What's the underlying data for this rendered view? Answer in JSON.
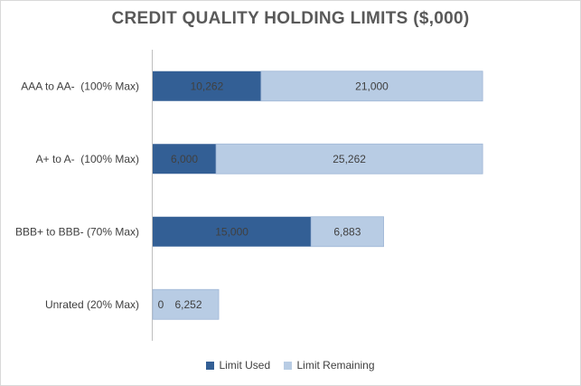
{
  "chart_data": {
    "type": "bar",
    "orientation": "horizontal",
    "stacked": true,
    "title": "CREDIT QUALITY HOLDING LIMITS ($,000)",
    "categories": [
      "AAA to AA-  (100% Max)",
      "A+ to A-  (100% Max)",
      "BBB+ to BBB- (70% Max)",
      "Unrated (20% Max)"
    ],
    "series": [
      {
        "name": "Limit Used",
        "values": [
          10262,
          6000,
          15000,
          0
        ],
        "labels": [
          "10,262",
          "6,000",
          "15,000",
          "0"
        ],
        "color": "#335f95"
      },
      {
        "name": "Limit Remaining",
        "values": [
          21000,
          25262,
          6883,
          6252
        ],
        "labels": [
          "21,000",
          "25,262",
          "6,883",
          "6,252"
        ],
        "color": "#b8cce4"
      }
    ],
    "xlim": [
      0,
      35000
    ],
    "grid": false,
    "legend": "bottom"
  }
}
